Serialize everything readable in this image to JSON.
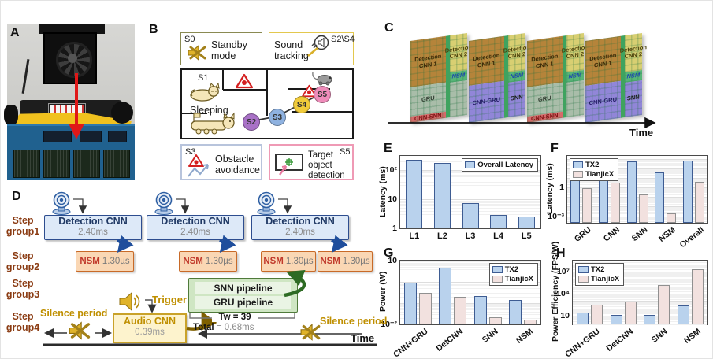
{
  "panels": {
    "a": {
      "label": "A"
    },
    "b": {
      "label": "B",
      "standby": {
        "id": "S0",
        "text": "Standby mode"
      },
      "sound": {
        "id": "S2\\S4",
        "text": "Sound tracking"
      },
      "map": {
        "s1": "S1",
        "sleeping": "Sleeping",
        "nodes": [
          {
            "id": "S2",
            "color": "#a972c7"
          },
          {
            "id": "S3",
            "color": "#8fb2e0"
          },
          {
            "id": "S4",
            "color": "#f1cb3a"
          },
          {
            "id": "S5",
            "color": "#ef8cba"
          }
        ]
      },
      "obstacle": {
        "id": "S3",
        "text": "Obstacle avoidance"
      },
      "target": {
        "id": "S5",
        "text": "Target object detection"
      }
    },
    "c": {
      "label": "C",
      "time_label": "Time",
      "regions": {
        "cnn1": "Detection CNN 1",
        "cnn2": "Detection CNN 2",
        "nsm": "NSM",
        "gru": "GRU",
        "cnn_snn": "CNN-SNN",
        "cnn_gru": "CNN-GRU",
        "snn": "SNN"
      }
    },
    "d": {
      "label": "D",
      "steps": [
        [
          "Step",
          "group1"
        ],
        [
          "Step",
          "group2"
        ],
        [
          "Step",
          "group3"
        ],
        [
          "Step",
          "group4"
        ]
      ],
      "detection": {
        "name": "Detection CNN",
        "time": "2.40ms"
      },
      "nsm": {
        "name": "NSM",
        "time": "1.30µs"
      },
      "snn_pipe": "SNN pipeline",
      "gru_pipe": "GRU pipeline",
      "audio": {
        "name": "Audio CNN",
        "time": "0.39ms"
      },
      "trigger": "Trigger",
      "silence": "Silence period",
      "tw": "Tw = 39",
      "total_label": "Total",
      "total_value": "= 0.68ms",
      "time_label": "Time"
    }
  },
  "chart_data": [
    {
      "panel": "E",
      "type": "bar",
      "ylabel": "Latency (ms)",
      "categories": [
        "L1",
        "L2",
        "L3",
        "L4",
        "L5"
      ],
      "series": [
        {
          "name": "Overall Latency",
          "color": "#b9d2ed",
          "edge": "#3e5c92",
          "values": [
            220,
            170,
            7.5,
            2.9,
            2.5
          ]
        }
      ],
      "ylog": true,
      "ylim": [
        1,
        300
      ],
      "yticks": [
        {
          "value": 1,
          "label": "1"
        },
        {
          "value": 10,
          "label": "10"
        },
        {
          "value": 100,
          "label": "10²"
        }
      ],
      "grid": true,
      "legend_position": "top-right",
      "rotate_xlabels": false
    },
    {
      "panel": "F",
      "type": "bar",
      "ylabel": "Latency (ms)",
      "categories": [
        "GRU",
        "CNN",
        "SNN",
        "NSM",
        "Overall"
      ],
      "series": [
        {
          "name": "TX2",
          "color": "#b9d2ed",
          "edge": "#3e5c92",
          "values": [
            17,
            35,
            500,
            35,
            700
          ]
        },
        {
          "name": "TianjicX",
          "color": "#f2e1df",
          "edge": "#909090",
          "values": [
            0.8,
            3,
            0.2,
            0.002,
            4
          ]
        }
      ],
      "ylog": true,
      "ylim": [
        0.0002,
        2000
      ],
      "yticks": [
        {
          "value": 1,
          "label": "1"
        },
        {
          "value": 0.001,
          "label": "10⁻³"
        }
      ],
      "grid": true,
      "legend_position": "top-left",
      "rotate_xlabels": true
    },
    {
      "panel": "G",
      "type": "bar",
      "ylabel": "Power (W)",
      "categories": [
        "CNN+GRU",
        "DetCNN",
        "SNN",
        "NSM"
      ],
      "series": [
        {
          "name": "TX2",
          "color": "#b9d2ed",
          "edge": "#3e5c92",
          "values": [
            0.95,
            4.5,
            0.21,
            0.14
          ]
        },
        {
          "name": "TianjicX",
          "color": "#f2e1df",
          "edge": "#909090",
          "values": [
            0.3,
            0.2,
            0.022,
            0.017
          ]
        }
      ],
      "ylog": true,
      "ylim": [
        0.01,
        10
      ],
      "yticks": [
        {
          "value": 10,
          "label": "10"
        },
        {
          "value": 0.01,
          "label": "10⁻²"
        }
      ],
      "grid": true,
      "legend_position": "top-right",
      "rotate_xlabels": true
    },
    {
      "panel": "H",
      "type": "bar",
      "ylabel": "Power Efficiency (FPS/W)",
      "categories": [
        "CNN+GRU",
        "DetCNN",
        "SNN",
        "NSM"
      ],
      "series": [
        {
          "name": "TX2",
          "color": "#b9d2ed",
          "edge": "#3e5c92",
          "values": [
            30,
            15,
            15,
            250
          ]
        },
        {
          "name": "TianjicX",
          "color": "#f2e1df",
          "edge": "#909090",
          "values": [
            300,
            900,
            150000,
            22000000
          ]
        }
      ],
      "ylog": true,
      "ylim": [
        0.7,
        300000000
      ],
      "yticks": [
        {
          "value": 10000000,
          "label": "10⁷"
        },
        {
          "value": 10000,
          "label": "10⁴"
        },
        {
          "value": 10,
          "label": "10"
        }
      ],
      "grid": true,
      "legend_position": "top-left",
      "rotate_xlabels": true
    }
  ]
}
